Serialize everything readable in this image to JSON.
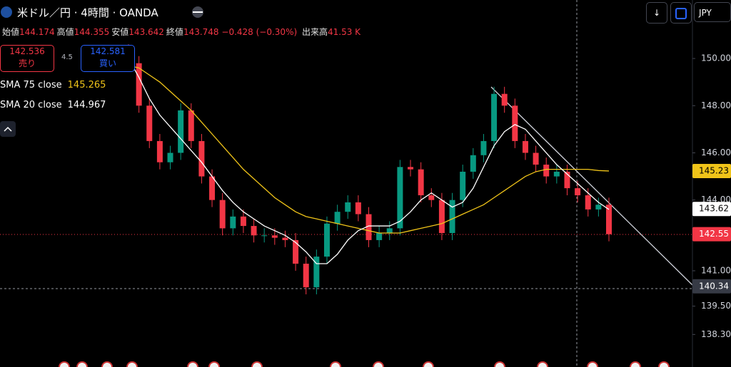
{
  "header": {
    "symbol": "米ドル／円 · 4時間 · OANDA",
    "ohlc": [
      {
        "label": "始値",
        "value": "144.174"
      },
      {
        "label": "高値",
        "value": "144.355"
      },
      {
        "label": "安値",
        "value": "143.642"
      },
      {
        "label": "終値",
        "value": "143.748"
      }
    ],
    "change": "−0.428 (−0.30%)",
    "volume_label": "出来高",
    "volume": "41.53 K",
    "sell": {
      "price": "142.536",
      "label": "売り"
    },
    "spread": "4.5",
    "buy": {
      "price": "142.581",
      "label": "買い"
    },
    "indicators": [
      {
        "name": "SMA 75 close",
        "value": "145.265",
        "color": "#f0c419"
      },
      {
        "name": "SMA 20 close",
        "value": "144.967",
        "color": "#ffffff"
      }
    ],
    "currency": "JPY"
  },
  "chart_data": {
    "type": "candlestick",
    "up_color": "#089981",
    "down_color": "#f23645",
    "ylim": [
      136.92,
      152.48
    ],
    "yticks": [
      {
        "value": 150,
        "label": "150.00"
      },
      {
        "value": 148,
        "label": "148.00"
      },
      {
        "value": 146,
        "label": "146.00"
      },
      {
        "value": 144,
        "label": "144.00"
      },
      {
        "value": 141,
        "label": "141.00"
      },
      {
        "value": 139.5,
        "label": "139.50"
      },
      {
        "value": 138.3,
        "label": "138.30"
      }
    ],
    "open": [
      150.3,
      149.8,
      148.0,
      146.5,
      145.6,
      146.0,
      147.8,
      146.5,
      145.0,
      144.0,
      142.8,
      143.3,
      142.9,
      142.5,
      142.5,
      142.4,
      142.3,
      141.3,
      140.3,
      141.6,
      143.0,
      143.5,
      143.9,
      143.4,
      142.3,
      142.6,
      142.8,
      145.4,
      145.3,
      144.2,
      144.0,
      142.6,
      144.0,
      145.2,
      145.9,
      146.5,
      148.5,
      148.0,
      146.5,
      146.0,
      145.5,
      145.0,
      145.2,
      144.5,
      144.2,
      143.6,
      143.8
    ],
    "high": [
      150.6,
      150.1,
      148.3,
      146.8,
      146.3,
      148.1,
      148.1,
      146.8,
      145.3,
      144.3,
      143.6,
      143.6,
      143.2,
      142.8,
      142.8,
      142.7,
      142.6,
      141.6,
      141.9,
      143.3,
      143.8,
      144.2,
      144.2,
      143.7,
      142.9,
      143.1,
      145.7,
      145.7,
      145.6,
      144.5,
      144.3,
      144.3,
      145.5,
      146.2,
      146.8,
      148.8,
      148.8,
      148.3,
      146.8,
      146.3,
      145.8,
      145.5,
      145.5,
      144.8,
      144.5,
      144.1,
      144.1
    ],
    "low": [
      149.5,
      147.7,
      146.2,
      145.3,
      145.3,
      145.7,
      146.2,
      144.7,
      143.7,
      142.5,
      142.5,
      142.6,
      142.2,
      142.2,
      142.1,
      142.0,
      141.0,
      140.0,
      140.0,
      141.3,
      142.7,
      143.2,
      143.1,
      142.0,
      142.0,
      142.3,
      142.5,
      145.0,
      143.9,
      143.7,
      142.3,
      142.3,
      143.7,
      144.9,
      145.6,
      146.2,
      147.7,
      146.2,
      145.7,
      145.2,
      144.7,
      144.7,
      144.2,
      143.9,
      143.3,
      143.3,
      142.25
    ],
    "close": [
      149.8,
      148.0,
      146.5,
      145.6,
      146.0,
      147.8,
      146.5,
      145.0,
      144.0,
      142.8,
      143.3,
      142.9,
      142.5,
      142.5,
      142.4,
      142.3,
      141.3,
      140.3,
      141.6,
      143.0,
      143.5,
      143.9,
      143.4,
      142.3,
      142.6,
      142.8,
      145.4,
      145.3,
      144.2,
      144.0,
      142.6,
      144.0,
      145.2,
      145.9,
      146.5,
      148.5,
      148.0,
      146.5,
      146.0,
      145.5,
      145.0,
      145.2,
      144.5,
      144.2,
      143.6,
      143.8,
      142.55
    ],
    "series": [
      {
        "name": "SMA 75 close",
        "color": "#f0c419",
        "values": [
          149.7,
          149.6,
          149.3,
          149.0,
          148.6,
          148.2,
          147.8,
          147.3,
          146.8,
          146.3,
          145.8,
          145.3,
          144.9,
          144.5,
          144.1,
          143.8,
          143.5,
          143.3,
          143.2,
          143.1,
          143.0,
          142.9,
          142.8,
          142.7,
          142.6,
          142.6,
          142.6,
          142.7,
          142.8,
          142.9,
          143.0,
          143.2,
          143.4,
          143.6,
          143.8,
          144.1,
          144.4,
          144.7,
          145.0,
          145.2,
          145.3,
          145.3,
          145.3,
          145.3,
          145.3,
          145.25,
          145.23
        ]
      },
      {
        "name": "SMA 20 close",
        "color": "#ffffff",
        "values": [
          150.0,
          149.2,
          148.3,
          147.6,
          147.1,
          146.6,
          146.1,
          145.6,
          145.0,
          144.4,
          143.9,
          143.5,
          143.2,
          142.9,
          142.7,
          142.5,
          142.2,
          141.8,
          141.3,
          141.3,
          141.7,
          142.3,
          142.7,
          142.9,
          142.9,
          142.9,
          143.1,
          143.5,
          144.0,
          144.3,
          144.0,
          143.7,
          143.9,
          144.5,
          145.4,
          146.3,
          146.9,
          147.2,
          147.0,
          146.5,
          146.0,
          145.5,
          145.1,
          144.7,
          144.3,
          143.9,
          143.6
        ]
      }
    ],
    "price_tags": [
      145.23,
      143.62,
      142.55,
      140.34
    ],
    "price_tag_colors": [
      "#f0c419",
      "#ffffff",
      "#f23645",
      "#363a45"
    ]
  }
}
